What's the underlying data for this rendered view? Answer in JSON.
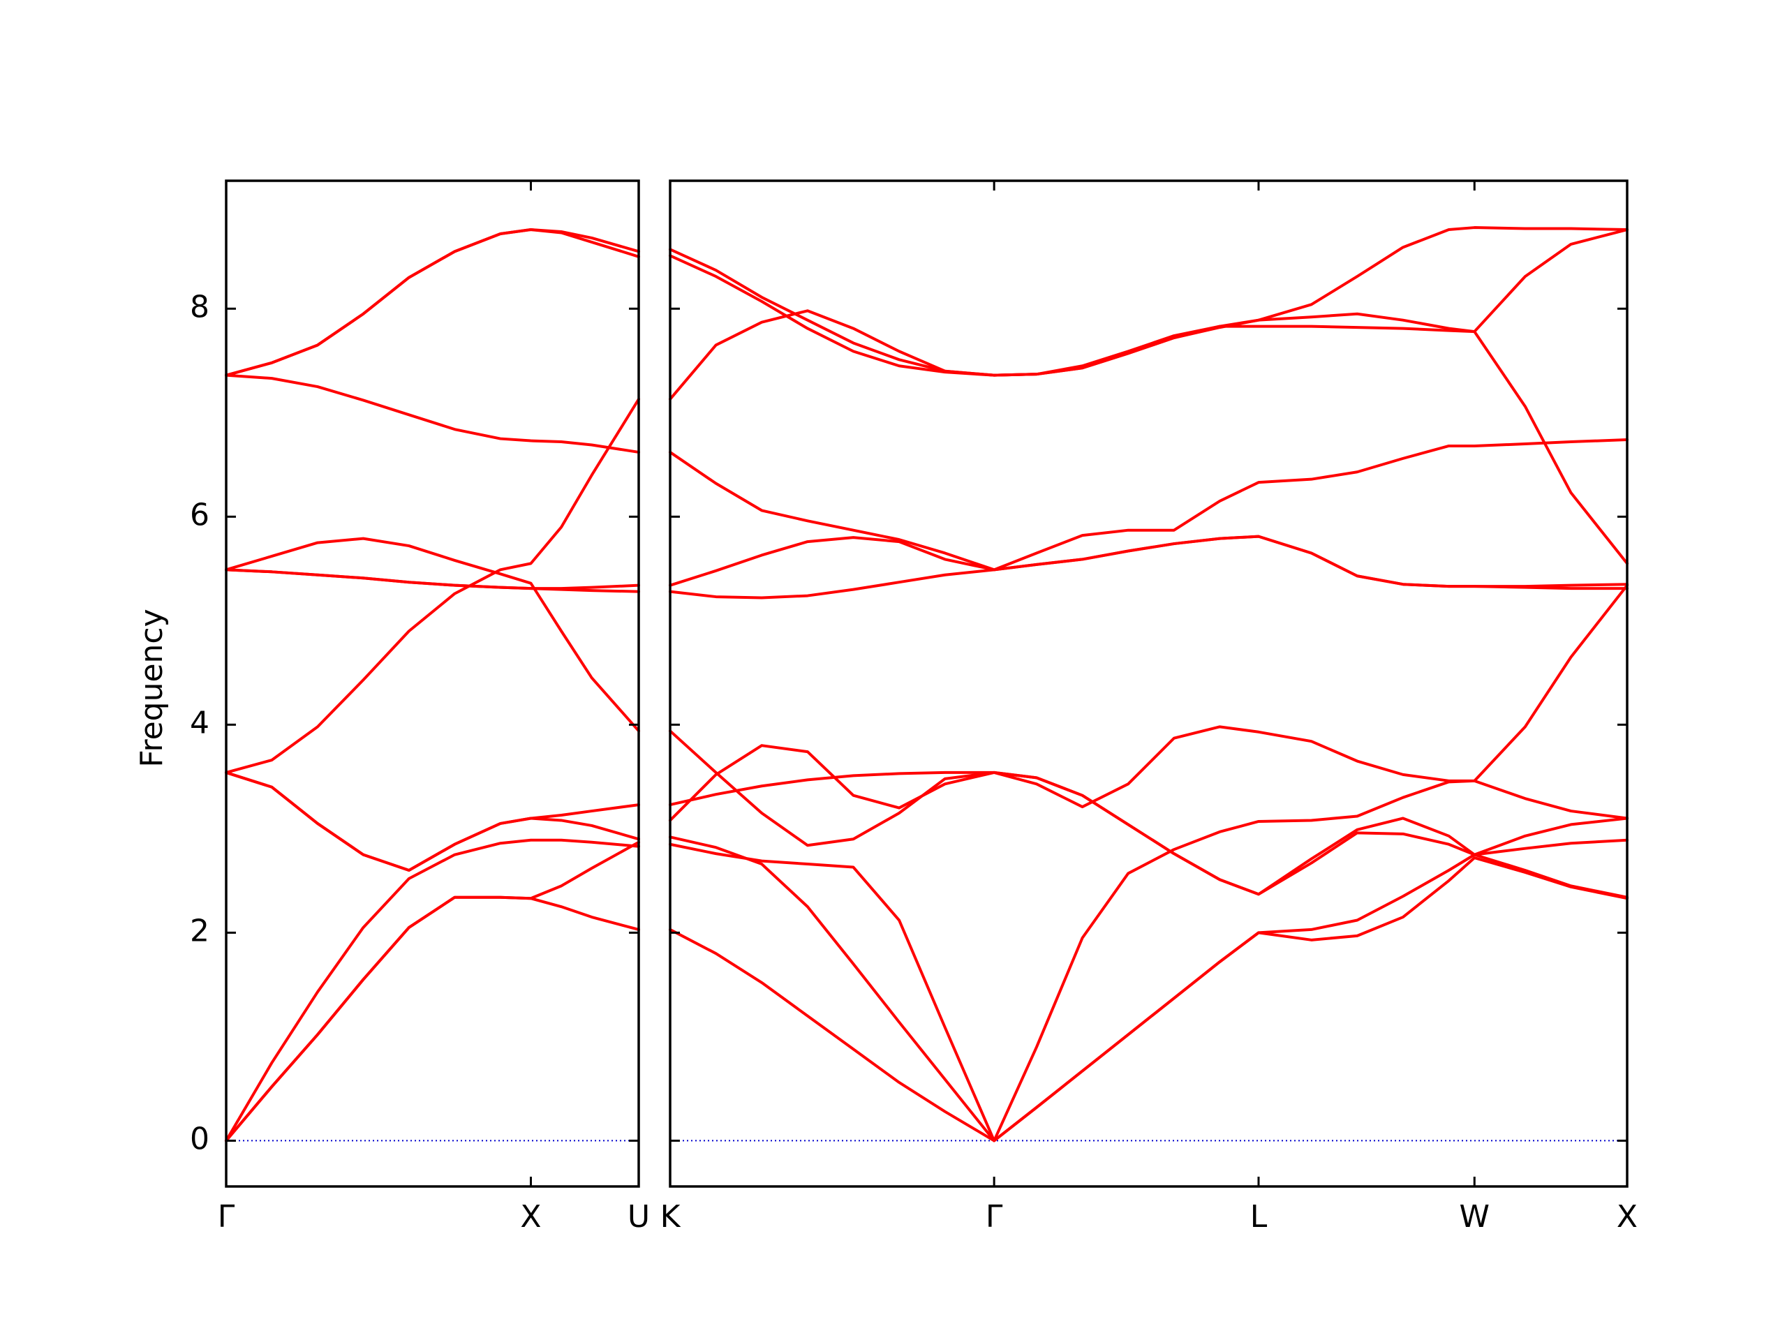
{
  "chart_data": [
    {
      "type": "line",
      "y_label": "Frequency",
      "x": [
        0,
        0.15,
        0.3,
        0.45,
        0.6,
        0.75,
        0.9,
        1.0,
        1.1,
        1.2,
        1.354
      ],
      "xlim": [
        0,
        1.354
      ],
      "xticks": [
        {
          "value": 0,
          "label": "Γ"
        },
        {
          "value": 1.0,
          "label": "X"
        },
        {
          "value": 1.354,
          "label": "U"
        }
      ],
      "ylim": [
        -0.44,
        9.23
      ],
      "yticks": [
        0,
        2,
        4,
        6,
        8
      ],
      "ytick_labels": true,
      "zero_line_color": "#0000cc",
      "series": [
        {
          "color": "#ff0000",
          "values": [
            0,
            0.52,
            1.02,
            1.55,
            2.05,
            2.34,
            2.34,
            2.33,
            2.25,
            2.15,
            2.03
          ]
        },
        {
          "color": "#ff0000",
          "values": [
            0,
            0.52,
            1.02,
            1.55,
            2.05,
            2.34,
            2.34,
            2.33,
            2.45,
            2.62,
            2.87
          ]
        },
        {
          "color": "#ff0000",
          "values": [
            0,
            0.75,
            1.43,
            2.05,
            2.52,
            2.75,
            2.86,
            2.89,
            2.89,
            2.87,
            2.83
          ]
        },
        {
          "color": "#ff0000",
          "values": [
            3.54,
            3.4,
            3.05,
            2.75,
            2.6,
            2.85,
            3.05,
            3.1,
            3.13,
            3.17,
            3.23
          ]
        },
        {
          "color": "#ff0000",
          "values": [
            3.54,
            3.4,
            3.05,
            2.75,
            2.6,
            2.85,
            3.05,
            3.1,
            3.08,
            3.03,
            2.9
          ]
        },
        {
          "color": "#ff0000",
          "values": [
            3.54,
            3.66,
            3.98,
            4.43,
            4.9,
            5.26,
            5.49,
            5.55,
            5.9,
            6.4,
            7.13
          ]
        },
        {
          "color": "#ff0000",
          "values": [
            5.49,
            5.62,
            5.75,
            5.79,
            5.72,
            5.58,
            5.45,
            5.36,
            4.9,
            4.45,
            3.94
          ]
        },
        {
          "color": "#ff0000",
          "values": [
            5.49,
            5.47,
            5.44,
            5.41,
            5.37,
            5.34,
            5.32,
            5.31,
            5.31,
            5.32,
            5.34
          ]
        },
        {
          "color": "#ff0000",
          "values": [
            5.49,
            5.47,
            5.44,
            5.41,
            5.37,
            5.34,
            5.32,
            5.31,
            5.3,
            5.29,
            5.28
          ]
        },
        {
          "color": "#ff0000",
          "values": [
            7.36,
            7.33,
            7.25,
            7.12,
            6.98,
            6.84,
            6.75,
            6.73,
            6.72,
            6.69,
            6.62
          ]
        },
        {
          "color": "#ff0000",
          "values": [
            7.36,
            7.48,
            7.65,
            7.95,
            8.3,
            8.55,
            8.72,
            8.76,
            8.74,
            8.68,
            8.55
          ]
        },
        {
          "color": "#ff0000",
          "values": [
            7.36,
            7.48,
            7.65,
            7.95,
            8.3,
            8.55,
            8.72,
            8.76,
            8.73,
            8.64,
            8.5
          ]
        }
      ]
    },
    {
      "type": "line",
      "x": [
        0,
        0.15,
        0.3,
        0.45,
        0.6,
        0.75,
        0.9,
        1.061,
        1.2,
        1.35,
        1.5,
        1.65,
        1.8,
        1.927,
        2.1,
        2.25,
        2.4,
        2.55,
        2.634,
        2.8,
        2.95,
        3.134
      ],
      "xlim": [
        0,
        3.134
      ],
      "xticks": [
        {
          "value": 0,
          "label": "K"
        },
        {
          "value": 1.061,
          "label": "Γ"
        },
        {
          "value": 1.927,
          "label": "L"
        },
        {
          "value": 2.634,
          "label": "W"
        },
        {
          "value": 3.134,
          "label": "X"
        }
      ],
      "ylim": [
        -0.44,
        9.23
      ],
      "yticks": [
        0,
        2,
        4,
        6,
        8
      ],
      "ytick_labels": false,
      "zero_line_color": "#0000cc",
      "series": [
        {
          "color": "#ff0000",
          "values": [
            2.03,
            1.8,
            1.52,
            1.2,
            0.88,
            0.56,
            0.28,
            0,
            0.32,
            0.67,
            1.02,
            1.37,
            1.72,
            2.0,
            1.93,
            1.97,
            2.15,
            2.5,
            2.72,
            2.58,
            2.44,
            2.33
          ]
        },
        {
          "color": "#ff0000",
          "values": [
            2.85,
            2.76,
            2.69,
            2.66,
            2.63,
            2.12,
            1.09,
            0,
            0.32,
            0.67,
            1.02,
            1.37,
            1.72,
            2.0,
            2.03,
            2.12,
            2.35,
            2.6,
            2.75,
            2.6,
            2.45,
            2.34
          ]
        },
        {
          "color": "#ff0000",
          "values": [
            2.92,
            2.82,
            2.66,
            2.25,
            1.7,
            1.14,
            0.59,
            0,
            0.9,
            1.95,
            2.57,
            2.8,
            2.97,
            3.07,
            3.08,
            3.12,
            3.3,
            3.45,
            3.46,
            3.98,
            4.65,
            5.34
          ]
        },
        {
          "color": "#ff0000",
          "values": [
            3.08,
            3.52,
            3.8,
            3.74,
            3.32,
            3.2,
            3.43,
            3.54,
            3.43,
            3.21,
            3.43,
            3.87,
            3.98,
            3.93,
            3.84,
            3.65,
            3.52,
            3.46,
            3.46,
            3.29,
            3.17,
            3.1
          ]
        },
        {
          "color": "#ff0000",
          "values": [
            3.23,
            3.33,
            3.41,
            3.47,
            3.51,
            3.53,
            3.54,
            3.54,
            3.49,
            3.32,
            3.04,
            2.76,
            2.51,
            2.37,
            2.67,
            2.96,
            2.95,
            2.85,
            2.75,
            2.81,
            2.86,
            2.89
          ]
        },
        {
          "color": "#ff0000",
          "values": [
            3.94,
            3.54,
            3.15,
            2.84,
            2.9,
            3.15,
            3.48,
            3.54,
            3.49,
            3.32,
            3.04,
            2.76,
            2.51,
            2.37,
            2.71,
            2.99,
            3.1,
            2.93,
            2.75,
            2.93,
            3.04,
            3.1
          ]
        },
        {
          "color": "#ff0000",
          "values": [
            5.28,
            5.23,
            5.22,
            5.24,
            5.3,
            5.37,
            5.44,
            5.49,
            5.54,
            5.59,
            5.67,
            5.74,
            5.79,
            5.81,
            5.65,
            5.43,
            5.35,
            5.33,
            5.33,
            5.32,
            5.31,
            5.31
          ]
        },
        {
          "color": "#ff0000",
          "values": [
            5.34,
            5.48,
            5.63,
            5.76,
            5.8,
            5.76,
            5.59,
            5.49,
            5.54,
            5.59,
            5.67,
            5.74,
            5.79,
            5.81,
            5.65,
            5.43,
            5.35,
            5.33,
            5.33,
            5.33,
            5.34,
            5.35
          ]
        },
        {
          "color": "#ff0000",
          "values": [
            6.62,
            6.32,
            6.06,
            5.96,
            5.87,
            5.78,
            5.65,
            5.49,
            5.65,
            5.82,
            5.87,
            5.87,
            6.15,
            6.33,
            6.36,
            6.43,
            6.56,
            6.68,
            6.68,
            6.7,
            6.72,
            6.74
          ]
        },
        {
          "color": "#ff0000",
          "values": [
            7.13,
            7.65,
            7.87,
            7.98,
            7.81,
            7.59,
            7.4,
            7.36,
            7.37,
            7.45,
            7.59,
            7.74,
            7.83,
            7.83,
            7.83,
            7.82,
            7.81,
            7.79,
            7.78,
            8.31,
            8.62,
            8.76
          ]
        },
        {
          "color": "#ff0000",
          "values": [
            8.51,
            8.31,
            8.07,
            7.81,
            7.59,
            7.45,
            7.39,
            7.36,
            7.37,
            7.43,
            7.57,
            7.72,
            7.82,
            7.89,
            7.92,
            7.95,
            7.89,
            7.81,
            7.78,
            7.06,
            6.23,
            5.55
          ]
        },
        {
          "color": "#ff0000",
          "values": [
            8.57,
            8.37,
            8.11,
            7.89,
            7.67,
            7.51,
            7.4,
            7.36,
            7.37,
            7.43,
            7.57,
            7.72,
            7.83,
            7.89,
            8.04,
            8.31,
            8.59,
            8.76,
            8.78,
            8.77,
            8.77,
            8.76
          ]
        }
      ]
    }
  ]
}
